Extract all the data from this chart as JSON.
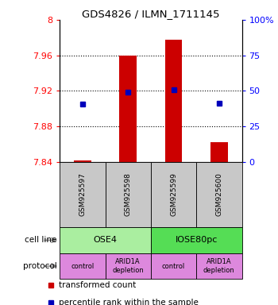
{
  "title": "GDS4826 / ILMN_1711145",
  "samples": [
    "GSM925597",
    "GSM925598",
    "GSM925599",
    "GSM925600"
  ],
  "bar_values": [
    7.841,
    7.96,
    7.978,
    7.862
  ],
  "bar_base": 7.84,
  "blue_dot_values": [
    7.905,
    7.918,
    7.921,
    7.906
  ],
  "ylim_min": 7.84,
  "ylim_max": 8.0,
  "yticks_left": [
    7.84,
    7.88,
    7.92,
    7.96,
    8.0
  ],
  "yticks_right": [
    0,
    25,
    50,
    75,
    100
  ],
  "ytick_labels_left": [
    "7.84",
    "7.88",
    "7.92",
    "7.96",
    "8"
  ],
  "ytick_labels_right": [
    "0",
    "25",
    "50",
    "75",
    "100%"
  ],
  "cell_line_labels": [
    "OSE4",
    "IOSE80pc"
  ],
  "cell_line_spans": [
    2,
    2
  ],
  "cell_line_colors": [
    "#aaeea0",
    "#55dd55"
  ],
  "protocol_labels": [
    "control",
    "ARID1A\ndepletion",
    "control",
    "ARID1A\ndepletion"
  ],
  "protocol_color": "#dd88dd",
  "sample_box_color": "#c8c8c8",
  "bar_color": "#cc0000",
  "dot_color": "#0000bb",
  "legend_items": [
    {
      "color": "#cc0000",
      "label": "transformed count"
    },
    {
      "color": "#0000bb",
      "label": "percentile rank within the sample"
    }
  ],
  "cell_line_row_label": "cell line",
  "protocol_row_label": "protocol",
  "label_arrow_color": "#888888"
}
